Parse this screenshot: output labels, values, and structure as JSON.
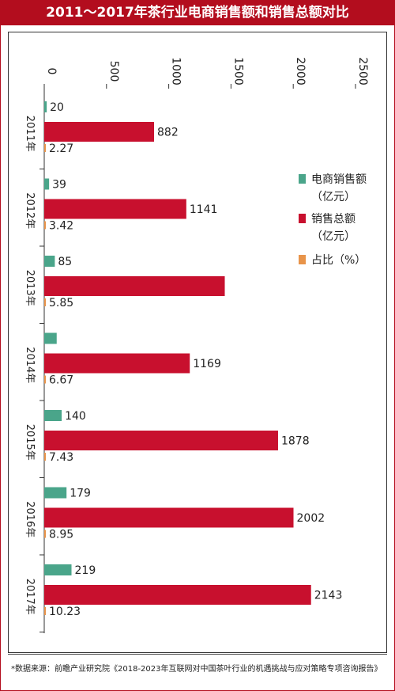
{
  "title": "2011～2017年茶行业电商销售额和销售总额对比",
  "footer": "*数据来源：前瞻产业研究院《2018-2023年互联网对中国茶叶行业的机遇挑战与应对策略专项咨询报告》",
  "colors": {
    "ecommerce": "#4aa58a",
    "total": "#c8102e",
    "ratio": "#e8944a",
    "brand": "#b30d1e"
  },
  "chart_data": {
    "type": "bar",
    "orientation": "horizontal",
    "title": "2011～2017年茶行业电商销售额和销售总额对比",
    "categories": [
      "2011年",
      "2012年",
      "2013年",
      "2014年",
      "2015年",
      "2016年",
      "2017年"
    ],
    "series": [
      {
        "name": "电商销售额（亿元）",
        "values": [
          20,
          39,
          85,
          100,
          140,
          179,
          219
        ],
        "labels": [
          "20",
          "39",
          "85",
          "",
          "140",
          "179",
          "219"
        ]
      },
      {
        "name": "销售总额（亿元）",
        "values": [
          882,
          1141,
          1450,
          1169,
          1878,
          2002,
          2143
        ],
        "labels": [
          "882",
          "1141",
          "",
          "1169",
          "1878",
          "2002",
          "2143"
        ]
      },
      {
        "name": "占比（%）",
        "values": [
          2.27,
          3.42,
          5.85,
          6.67,
          7.43,
          8.95,
          10.23
        ],
        "labels": [
          "2.27",
          "3.42",
          "5.85",
          "6.67",
          "7.43",
          "8.95",
          "10.23"
        ]
      }
    ],
    "xlim": [
      0,
      2500
    ],
    "ticks": [
      "0",
      "500",
      "1000",
      "1500",
      "2000",
      "2500"
    ],
    "legend": [
      {
        "lines": [
          "电商销售额",
          "（亿元）"
        ],
        "marker": "ecommerce"
      },
      {
        "lines": [
          "销售总额",
          "（亿元）"
        ],
        "marker": "total"
      },
      {
        "lines": [
          "占比（%）"
        ],
        "marker": "ratio"
      }
    ],
    "legend_position": "right"
  }
}
